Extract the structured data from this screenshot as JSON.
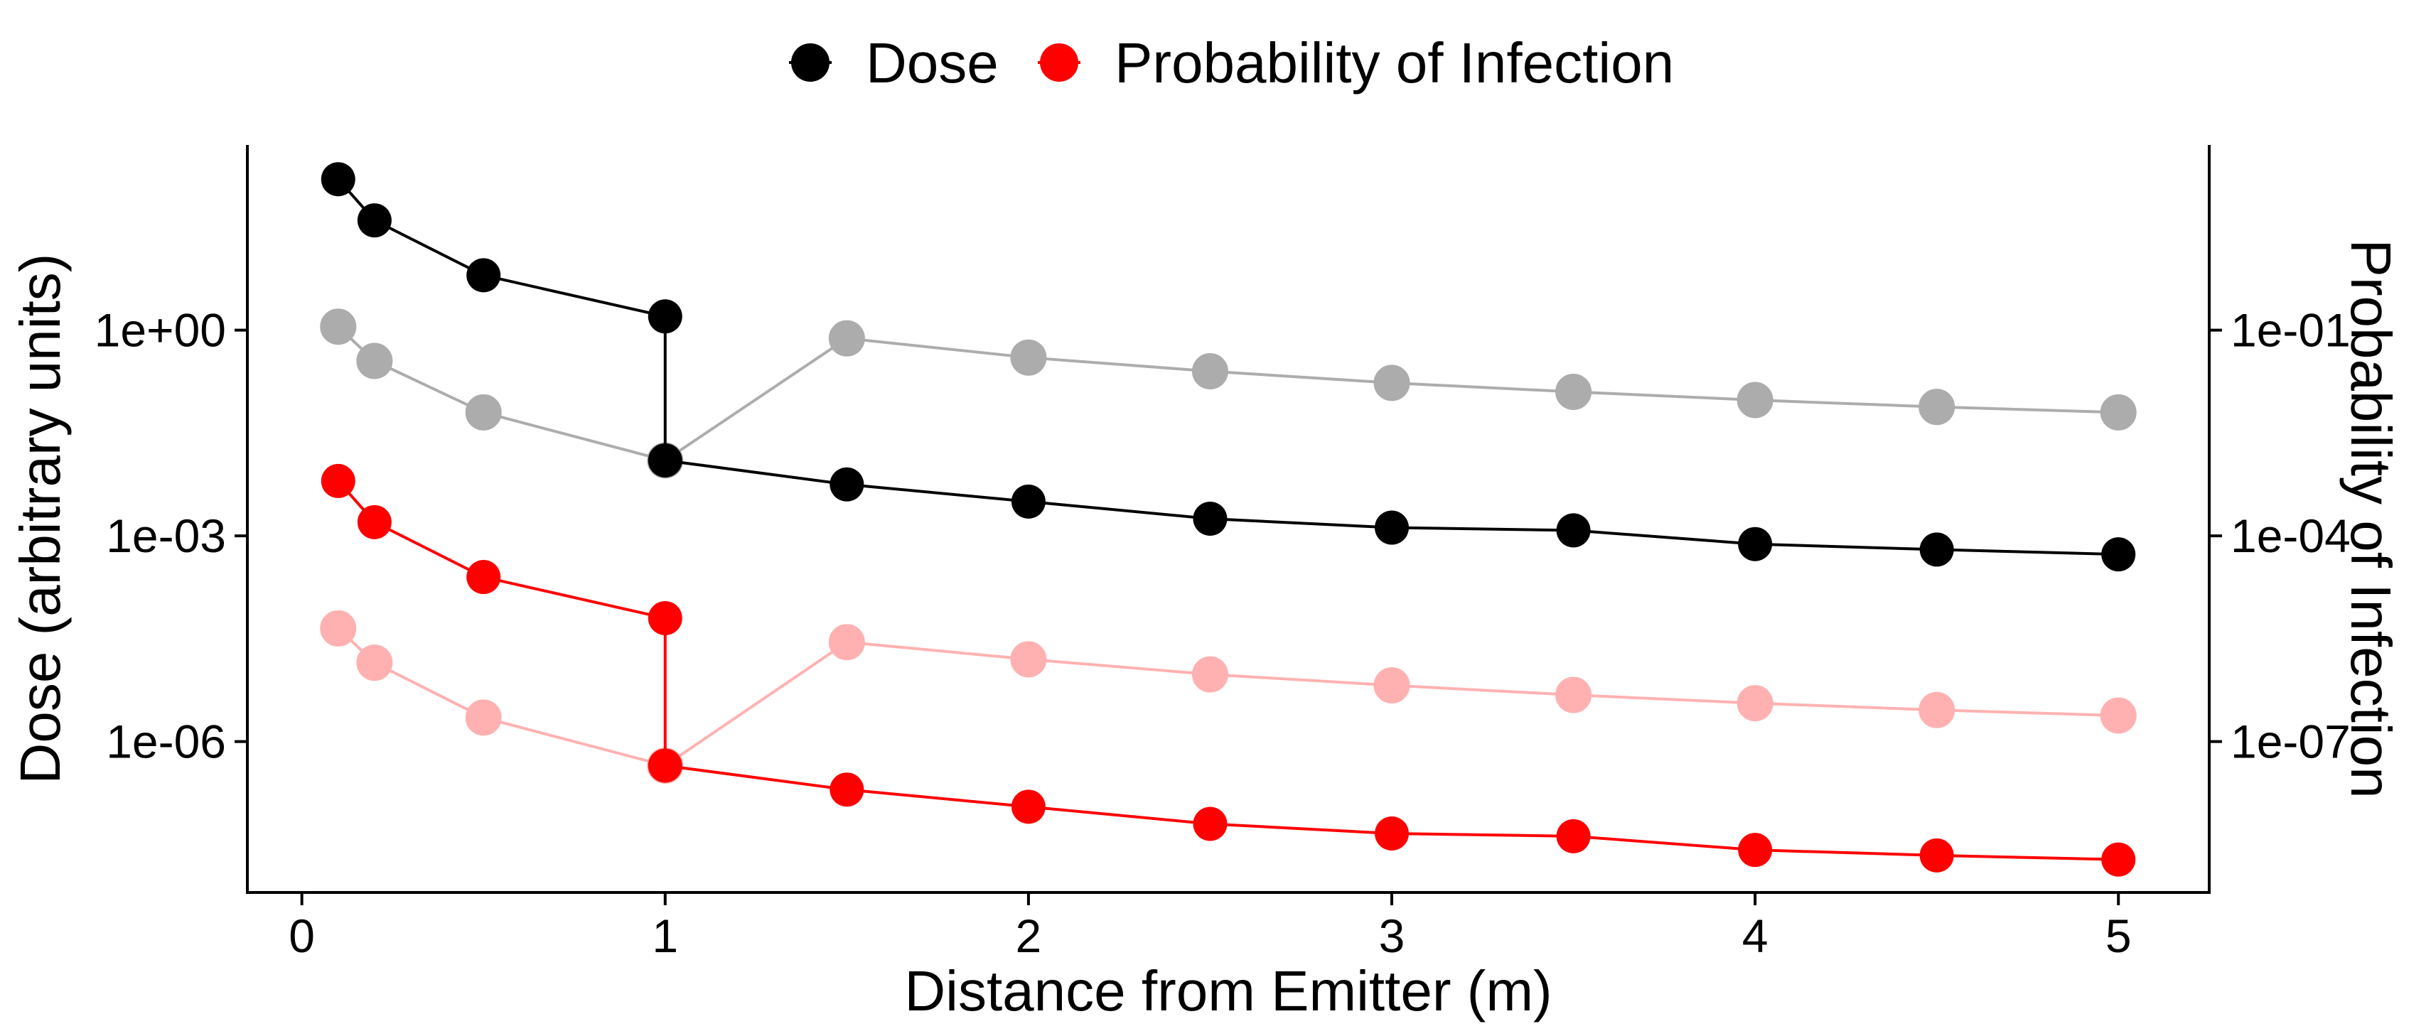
{
  "chart_data": {
    "type": "line",
    "xlabel": "Distance from Emitter (m)",
    "ylabel": "Dose (arbitrary units)",
    "y2label": "Probability of Infection",
    "x_ticks": [
      "0",
      "1",
      "2",
      "3",
      "4",
      "5"
    ],
    "y_ticks": [
      "1e+00",
      "1e-03",
      "1e-06"
    ],
    "y2_ticks": [
      "1e-01",
      "1e-04",
      "1e-07"
    ],
    "xlim": [
      -0.15,
      5.25
    ],
    "ylim_log10": [
      -8.2,
      2.7
    ],
    "y_scale": "log10",
    "y2_offset_log10": -1,
    "legend": {
      "position": "top",
      "entries": [
        {
          "label": "Dose",
          "color": "#000000"
        },
        {
          "label": "Probability of Infection",
          "color": "#ff0000"
        }
      ]
    },
    "x": [
      0.1,
      0.2,
      0.5,
      1,
      1.5,
      2,
      2.5,
      3,
      3.5,
      4,
      4.5,
      5
    ],
    "series": [
      {
        "group": "Dose",
        "color": "#000000",
        "alpha": 1,
        "x": [
          0.1,
          0.2,
          0.5,
          1,
          1,
          1.5,
          2,
          2.5,
          3,
          3.5,
          4,
          4.5,
          5
        ],
        "log10_values": [
          2.2,
          1.6,
          0.8,
          0.2,
          -1.9,
          -2.25,
          -2.5,
          -2.75,
          -2.88,
          -2.92,
          -3.12,
          -3.2,
          -3.27
        ]
      },
      {
        "group": "Dose",
        "color": "#000000",
        "alpha": 0.32,
        "x": [
          0.1,
          0.2,
          0.5,
          1,
          1.5,
          2,
          2.5,
          3,
          3.5,
          4,
          4.5,
          5
        ],
        "log10_values": [
          0.05,
          -0.45,
          -1.2,
          -1.9,
          -0.12,
          -0.4,
          -0.6,
          -0.77,
          -0.9,
          -1.02,
          -1.12,
          -1.2
        ]
      },
      {
        "group": "Probability of Infection",
        "color": "#ff0000",
        "alpha": 1,
        "x": [
          0.1,
          0.2,
          0.5,
          1,
          1,
          1.5,
          2,
          2.5,
          3,
          3.5,
          4,
          4.5,
          5
        ],
        "log10_values": [
          -2.2,
          -2.8,
          -3.6,
          -4.2,
          -6.35,
          -6.7,
          -6.95,
          -7.2,
          -7.34,
          -7.38,
          -7.58,
          -7.66,
          -7.72
        ]
      },
      {
        "group": "Probability of Infection",
        "color": "#ff0000",
        "alpha": 0.3,
        "x": [
          0.1,
          0.2,
          0.5,
          1,
          1.5,
          2,
          2.5,
          3,
          3.5,
          4,
          4.5,
          5
        ],
        "log10_values": [
          -4.35,
          -4.85,
          -5.65,
          -6.35,
          -4.55,
          -4.8,
          -5.02,
          -5.18,
          -5.32,
          -5.44,
          -5.54,
          -5.62
        ]
      }
    ]
  }
}
